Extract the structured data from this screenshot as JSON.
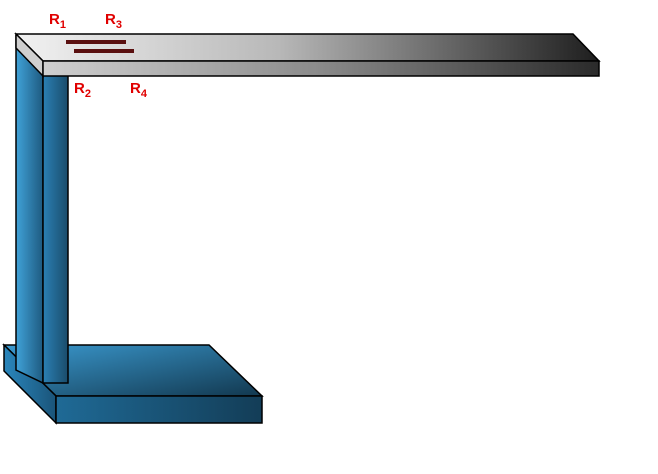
{
  "diagram": {
    "colors": {
      "label": "#e00000",
      "gauge": "#5a1010",
      "outline": "#000000",
      "beam_light": "#f2f2f2",
      "beam_dark": "#1e1e1e",
      "base_light": "#3b9ad0",
      "base_dark": "#12384f"
    },
    "labels": {
      "r1": {
        "letter": "R",
        "sub": "1"
      },
      "r2": {
        "letter": "R",
        "sub": "2"
      },
      "r3": {
        "letter": "R",
        "sub": "3"
      },
      "r4": {
        "letter": "R",
        "sub": "4"
      }
    }
  }
}
